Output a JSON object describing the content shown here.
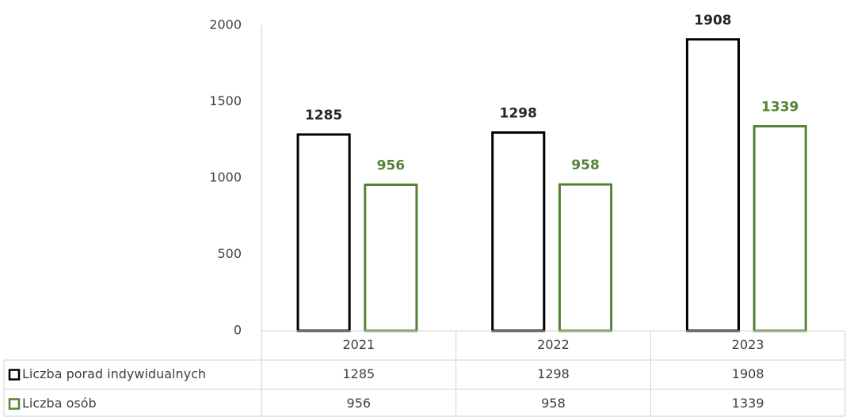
{
  "chart_data": {
    "type": "bar",
    "categories": [
      "2021",
      "2022",
      "2023"
    ],
    "series": [
      {
        "name": "Liczba porad indywidualnych",
        "color": "#000000",
        "values": [
          1285,
          1298,
          1908
        ]
      },
      {
        "name": "Liczba osób",
        "color": "#548235",
        "values": [
          956,
          958,
          1339
        ]
      }
    ],
    "ylim": [
      0,
      2000
    ],
    "yticks": [
      0,
      500,
      1000,
      1500,
      2000
    ],
    "grid": false,
    "data_table": true
  }
}
